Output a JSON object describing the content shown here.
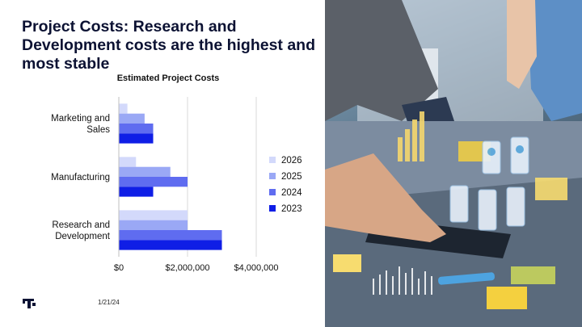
{
  "slide": {
    "title": "Project Costs: Research and Development costs are the highest and most stable",
    "date": "1/21/24"
  },
  "colors": {
    "title": "#0c1233",
    "series_2026": "#d3d9fb",
    "series_2025": "#9aa8f5",
    "series_2024": "#5f6cf0",
    "series_2023": "#0f1ee6"
  },
  "chart_data": {
    "type": "bar",
    "orientation": "horizontal",
    "title": "Estimated Project Costs",
    "categories": [
      "Marketing and Sales",
      "Manufacturing",
      "Research and Development"
    ],
    "category_label_lines": [
      [
        "Marketing and",
        "Sales"
      ],
      [
        "Manufacturing"
      ],
      [
        "Research and",
        "Development"
      ]
    ],
    "series": [
      {
        "name": "2026",
        "values": [
          250000,
          500000,
          2000000
        ],
        "color": "#d3d9fb"
      },
      {
        "name": "2025",
        "values": [
          750000,
          1500000,
          2000000
        ],
        "color": "#9aa8f5"
      },
      {
        "name": "2024",
        "values": [
          1000000,
          2000000,
          3000000
        ],
        "color": "#5f6cf0"
      },
      {
        "name": "2023",
        "values": [
          1000000,
          1000000,
          3000000
        ],
        "color": "#0f1ee6"
      }
    ],
    "xlim": [
      0,
      4000000
    ],
    "x_ticks": [
      0,
      2000000,
      4000000
    ],
    "x_tick_labels": [
      "$0",
      "$2,000,000",
      "$4,000,000"
    ],
    "xlabel": "",
    "ylabel": "",
    "grid": "vertical",
    "legend_position": "right"
  },
  "photo": {
    "icon": "collaboration-photo"
  }
}
